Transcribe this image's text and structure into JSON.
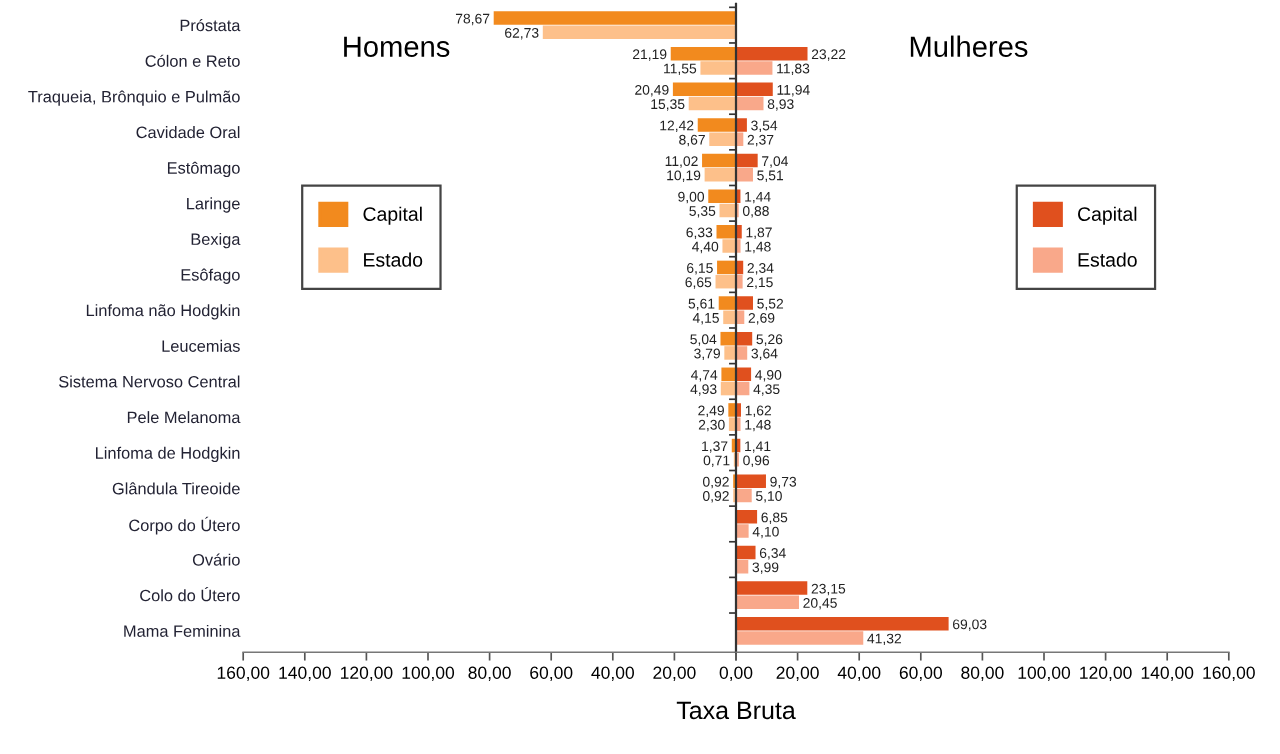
{
  "chart_data": [
    {
      "type": "bar",
      "orientation": "horizontal",
      "xlabel": "Taxa Bruta",
      "categories": [
        "Próstata",
        "Cólon e Reto",
        "Traqueia, Brônquio e Pulmão",
        "Cavidade Oral",
        "Estômago",
        "Laringe",
        "Bexiga",
        "Esôfago",
        "Linfoma não Hodgkin",
        "Leucemias",
        "Sistema Nervoso Central",
        "Pele Melanoma",
        "Linfoma de Hodgkin",
        "Glândula Tireoide",
        "Corpo do Útero",
        "Ovário",
        "Colo do Útero",
        "Mama Feminina"
      ],
      "series": [
        {
          "name": "Estado",
          "color": "#fdc08a",
          "values": [
            62.73,
            11.55,
            15.35,
            8.67,
            10.19,
            5.35,
            4.4,
            6.65,
            4.15,
            3.79,
            4.93,
            2.3,
            0.71,
            0.92,
            null,
            null,
            null,
            null
          ],
          "value_labels": [
            "62,73",
            "11,55",
            "15,35",
            "8,67",
            "10,19",
            "5,35",
            "4,40",
            "6,65",
            "4,15",
            "3,79",
            "4,93",
            "2,30",
            "0,71",
            "0,92",
            null,
            null,
            null,
            null
          ]
        },
        {
          "name": "Capital",
          "color": "#f28a1e",
          "values": [
            78.67,
            21.19,
            20.49,
            12.42,
            11.02,
            9.0,
            6.33,
            6.15,
            5.61,
            5.04,
            4.74,
            2.49,
            1.37,
            0.92,
            null,
            null,
            null,
            null
          ],
          "value_labels": [
            "78,67",
            "21,19",
            "20,49",
            "12,42",
            "11,02",
            "9,00",
            "6,33",
            "6,15",
            "5,61",
            "5,04",
            "4,74",
            "2,49",
            "1,37",
            "0,92",
            null,
            null,
            null,
            null
          ]
        }
      ],
      "xlim": [
        160,
        0
      ],
      "xticks": [
        {
          "value": 160,
          "label": "160,00"
        },
        {
          "value": 140,
          "label": "140,00"
        },
        {
          "value": 120,
          "label": "120,00"
        },
        {
          "value": 100,
          "label": "100,00"
        },
        {
          "value": 80,
          "label": "80,00"
        },
        {
          "value": 60,
          "label": "60,00"
        },
        {
          "value": 40,
          "label": "40,00"
        },
        {
          "value": 20,
          "label": "20,00"
        },
        {
          "value": 0,
          "label": null
        }
      ],
      "annotations": [
        "Homens"
      ],
      "legend": "center left"
    },
    {
      "type": "bar",
      "orientation": "horizontal",
      "categories": [
        null,
        null,
        null,
        null,
        null,
        null,
        null,
        null,
        null,
        null,
        null,
        null,
        null,
        null,
        null,
        null,
        null,
        null
      ],
      "tick_labels": "x",
      "series": [
        {
          "name": "Estado",
          "color": "#f9a88a",
          "values": [
            null,
            11.83,
            8.93,
            2.37,
            5.51,
            0.88,
            1.48,
            2.15,
            2.69,
            3.64,
            4.35,
            1.48,
            0.96,
            5.1,
            4.1,
            3.99,
            20.45,
            41.32
          ],
          "value_labels": [
            null,
            "11,83",
            "8,93",
            "2,37",
            "5,51",
            "0,88",
            "1,48",
            "2,15",
            "2,69",
            "3,64",
            "4,35",
            "1,48",
            "0,96",
            "5,10",
            "4,10",
            "3,99",
            "20,45",
            "41,32"
          ]
        },
        {
          "name": "Capital",
          "color": "#e0501e",
          "values": [
            null,
            23.22,
            11.94,
            3.54,
            7.04,
            1.44,
            1.87,
            2.34,
            5.52,
            5.26,
            4.9,
            1.62,
            1.41,
            9.73,
            6.85,
            6.34,
            23.15,
            69.03
          ],
          "value_labels": [
            null,
            "23,22",
            "11,94",
            "3,54",
            "7,04",
            "1,44",
            "1,87",
            "2,34",
            "5,52",
            "5,26",
            "4,90",
            "1,62",
            "1,41",
            "9,73",
            "6,85",
            "6,34",
            "23,15",
            "69,03"
          ]
        }
      ],
      "xlim": [
        0,
        160
      ],
      "xticks": [
        {
          "value": 0,
          "label": "0,00"
        },
        {
          "value": 20,
          "label": "20,00"
        },
        {
          "value": 40,
          "label": "40,00"
        },
        {
          "value": 60,
          "label": "60,00"
        },
        {
          "value": 80,
          "label": "80,00"
        },
        {
          "value": 100,
          "label": "100,00"
        },
        {
          "value": 120,
          "label": "120,00"
        },
        {
          "value": 140,
          "label": "140,00"
        },
        {
          "value": 160,
          "label": "160,00"
        }
      ],
      "annotations": [
        "Mulheres"
      ],
      "legend": "center right"
    }
  ]
}
